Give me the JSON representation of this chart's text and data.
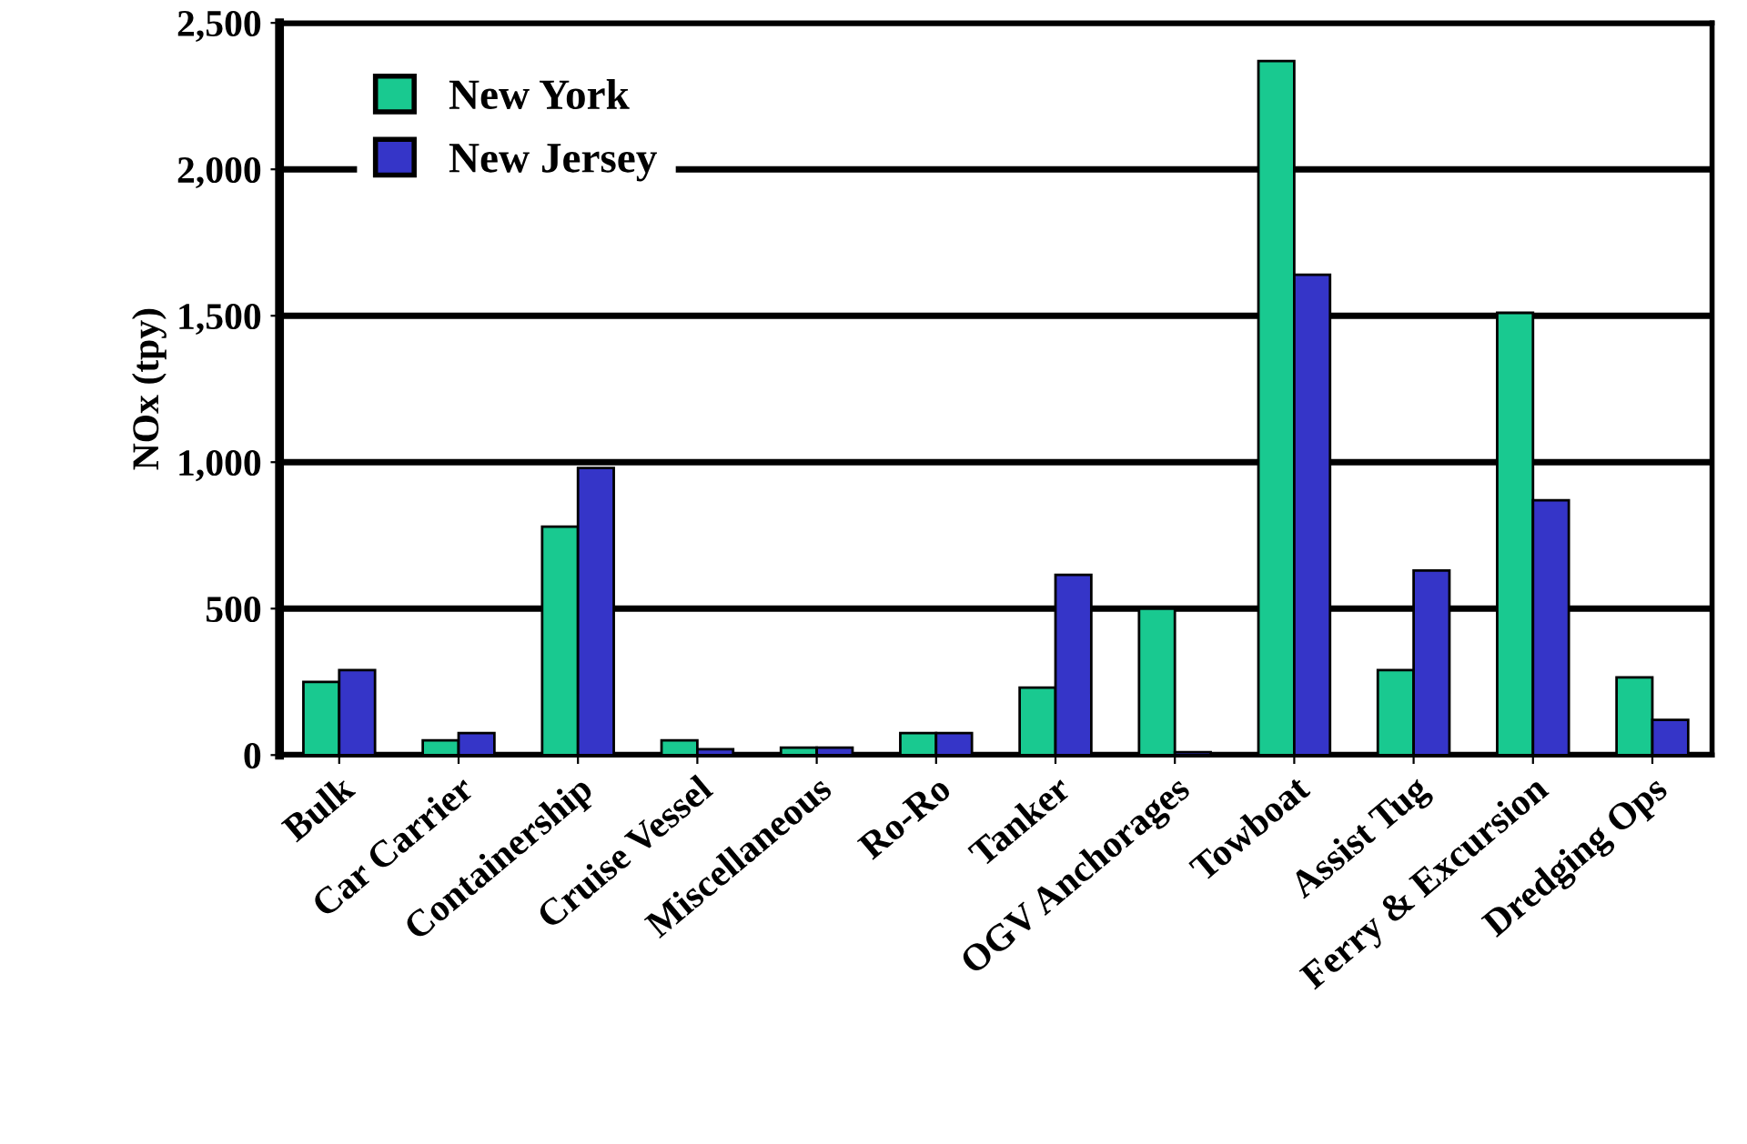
{
  "chart_data": {
    "type": "bar",
    "ylabel": "NOx (tpy)",
    "categories": [
      "Bulk",
      "Car Carrier",
      "Containership",
      "Cruise Vessel",
      "Miscellaneous",
      "Ro-Ro",
      "Tanker",
      "OGV Anchorages",
      "Towboat",
      "Assist Tug",
      "Ferry & Excursion",
      "Dredging Ops"
    ],
    "series": [
      {
        "name": "New York",
        "color": "#19c990",
        "values": [
          250,
          50,
          780,
          50,
          25,
          75,
          230,
          500,
          2370,
          290,
          1510,
          265
        ]
      },
      {
        "name": "New Jersey",
        "color": "#3535c8",
        "values": [
          290,
          75,
          980,
          20,
          25,
          75,
          615,
          10,
          1640,
          630,
          870,
          120
        ]
      }
    ],
    "ylim": [
      0,
      2500
    ],
    "yticks": [
      {
        "value": 0,
        "label": "0"
      },
      {
        "value": 500,
        "label": "500"
      },
      {
        "value": 1000,
        "label": "1,000"
      },
      {
        "value": 1500,
        "label": "1,500"
      },
      {
        "value": 2000,
        "label": "2,000"
      },
      {
        "value": 2500,
        "label": "2,500"
      }
    ],
    "grid": "y",
    "legend": "top left"
  }
}
